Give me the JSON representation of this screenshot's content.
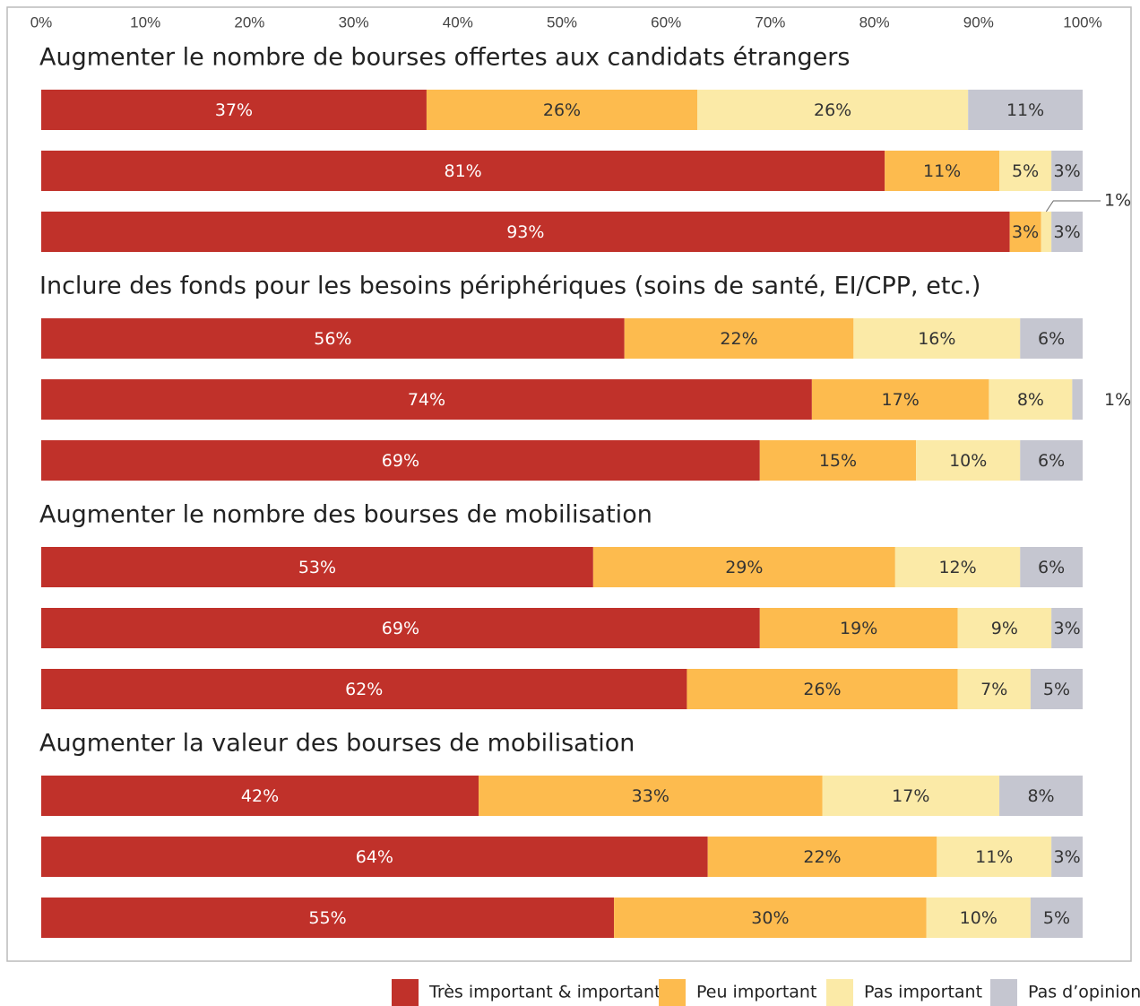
{
  "chart_data": {
    "type": "stacked-bar-horizontal",
    "group_titles": [
      "Augmenter le nombre de bourses offertes aux candidats étrangers",
      "Inclure des fonds pour les besoins périphériques (soins de santé, EI/CPP, etc.)",
      "Augmenter le nombre des bourses de mobilisation",
      "Augmenter la valeur des bourses de mobilisation"
    ],
    "categories": [
      null,
      null,
      null,
      null,
      null,
      null,
      null,
      null,
      null,
      null,
      null,
      null
    ],
    "xlim": [
      0,
      100
    ],
    "xticks": [
      {
        "value": 0,
        "label": "0%"
      },
      {
        "value": 10,
        "label": "10%"
      },
      {
        "value": 20,
        "label": "20%"
      },
      {
        "value": 30,
        "label": "30%"
      },
      {
        "value": 40,
        "label": "40%"
      },
      {
        "value": 50,
        "label": "50%"
      },
      {
        "value": 60,
        "label": "60%"
      },
      {
        "value": 70,
        "label": "70%"
      },
      {
        "value": 80,
        "label": "80%"
      },
      {
        "value": 90,
        "label": "90%"
      },
      {
        "value": 100,
        "label": "100%"
      }
    ],
    "series": [
      {
        "name": "Très important & important",
        "color": "#c0312a",
        "label_color": "#ffffff",
        "values": [
          37,
          81,
          93,
          56,
          74,
          69,
          53,
          69,
          62,
          42,
          64,
          55
        ],
        "value_labels": [
          "37%",
          "81%",
          "93%",
          "56%",
          "74%",
          "69%",
          "53%",
          "69%",
          "62%",
          "42%",
          "64%",
          "55%"
        ]
      },
      {
        "name": "Peu important",
        "color": "#fdbb4e",
        "label_color": "#333333",
        "values": [
          26,
          11,
          3,
          22,
          17,
          15,
          29,
          19,
          26,
          33,
          22,
          30
        ],
        "value_labels": [
          "26%",
          "11%",
          "3%",
          "22%",
          "17%",
          "15%",
          "29%",
          "19%",
          "26%",
          "33%",
          "22%",
          "30%"
        ]
      },
      {
        "name": "Pas important",
        "color": "#fbeaa7",
        "label_color": "#333333",
        "values": [
          26,
          5,
          1,
          16,
          8,
          10,
          12,
          9,
          7,
          17,
          11,
          10
        ],
        "value_labels": [
          "26%",
          "5%",
          "1%",
          "16%",
          "8%",
          "10%",
          "12%",
          "9%",
          "7%",
          "17%",
          "11%",
          "10%"
        ]
      },
      {
        "name": "Pas d’opinion",
        "color": "#c5c6d0",
        "label_color": "#333333",
        "values": [
          11,
          3,
          3,
          6,
          1,
          6,
          6,
          3,
          5,
          8,
          3,
          5
        ],
        "value_labels": [
          "11%",
          "3%",
          "3%",
          "6%",
          "1%",
          "6%",
          "6%",
          "3%",
          "5%",
          "8%",
          "3%",
          "5%"
        ]
      }
    ]
  }
}
